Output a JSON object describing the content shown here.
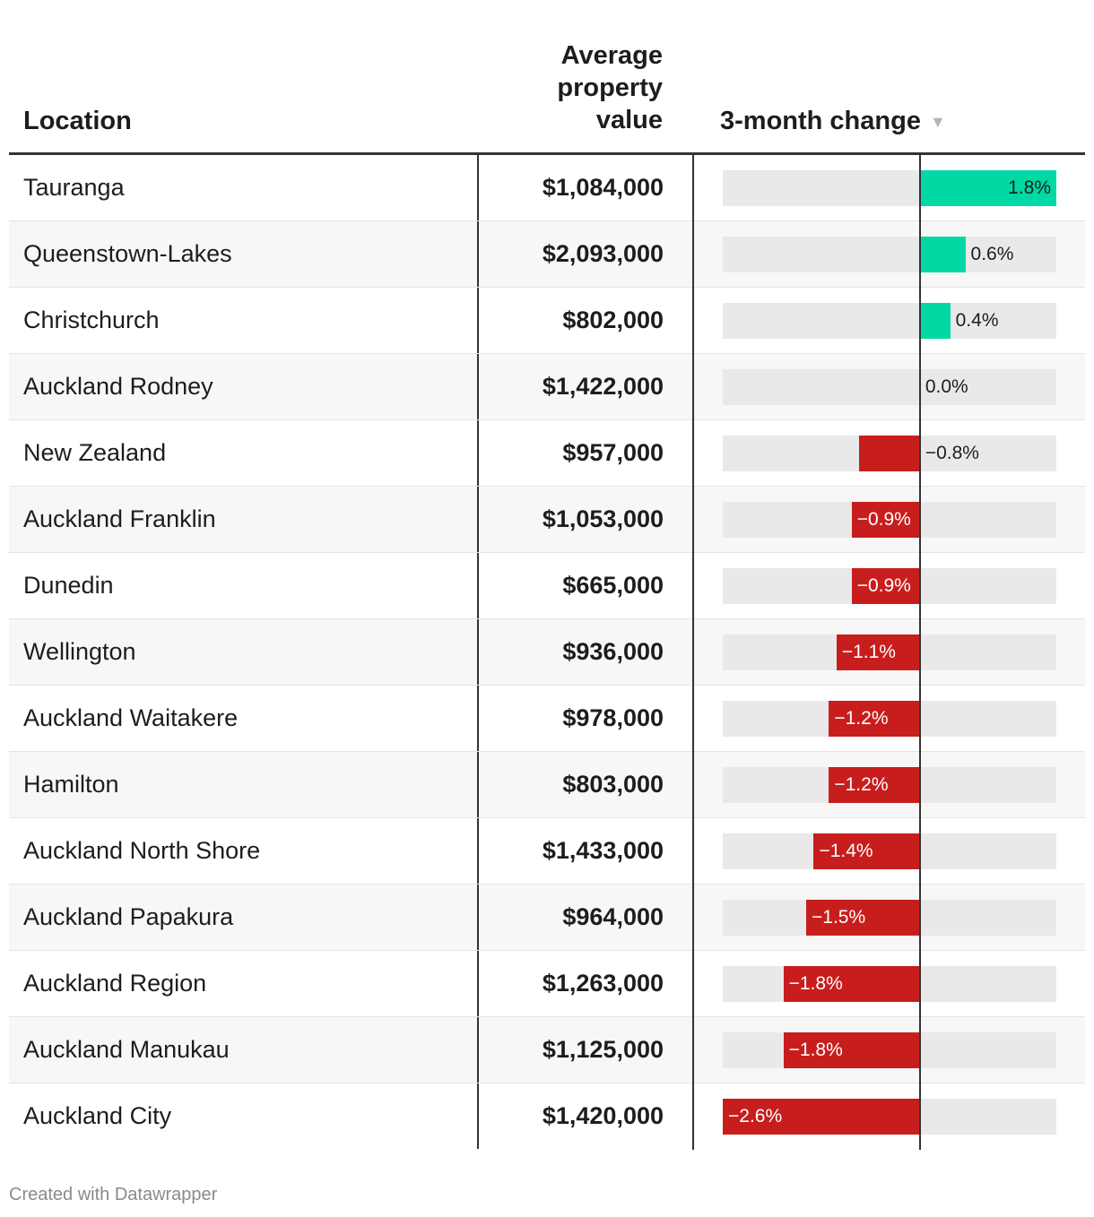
{
  "header": {
    "location": "Location",
    "value_lines": [
      "Average",
      "property",
      "value"
    ],
    "change": "3-month change",
    "sort_indicator": "▼"
  },
  "colors": {
    "positive": "#00d9a3",
    "negative": "#c71e1d",
    "bar_background": "#e9e9e9"
  },
  "chart_data": {
    "type": "table",
    "columns": [
      "Location",
      "Average property value",
      "3-month change"
    ],
    "change_range": [
      -2.6,
      1.8
    ],
    "rows": [
      {
        "location": "Tauranga",
        "value": "$1,084,000",
        "change": 1.8,
        "change_label": "1.8%"
      },
      {
        "location": "Queenstown-Lakes",
        "value": "$2,093,000",
        "change": 0.6,
        "change_label": "0.6%"
      },
      {
        "location": "Christchurch",
        "value": "$802,000",
        "change": 0.4,
        "change_label": "0.4%"
      },
      {
        "location": "Auckland Rodney",
        "value": "$1,422,000",
        "change": 0.0,
        "change_label": "0.0%"
      },
      {
        "location": "New Zealand",
        "value": "$957,000",
        "change": -0.8,
        "change_label": "−0.8%"
      },
      {
        "location": "Auckland Franklin",
        "value": "$1,053,000",
        "change": -0.9,
        "change_label": "−0.9%"
      },
      {
        "location": "Dunedin",
        "value": "$665,000",
        "change": -0.9,
        "change_label": "−0.9%"
      },
      {
        "location": "Wellington",
        "value": "$936,000",
        "change": -1.1,
        "change_label": "−1.1%"
      },
      {
        "location": "Auckland Waitakere",
        "value": "$978,000",
        "change": -1.2,
        "change_label": "−1.2%"
      },
      {
        "location": "Hamilton",
        "value": "$803,000",
        "change": -1.2,
        "change_label": "−1.2%"
      },
      {
        "location": "Auckland North Shore",
        "value": "$1,433,000",
        "change": -1.4,
        "change_label": "−1.4%"
      },
      {
        "location": "Auckland Papakura",
        "value": "$964,000",
        "change": -1.5,
        "change_label": "−1.5%"
      },
      {
        "location": "Auckland Region",
        "value": "$1,263,000",
        "change": -1.8,
        "change_label": "−1.8%"
      },
      {
        "location": "Auckland Manukau",
        "value": "$1,125,000",
        "change": -1.8,
        "change_label": "−1.8%"
      },
      {
        "location": "Auckland City",
        "value": "$1,420,000",
        "change": -2.6,
        "change_label": "−2.6%"
      }
    ]
  },
  "footer": "Created with Datawrapper"
}
